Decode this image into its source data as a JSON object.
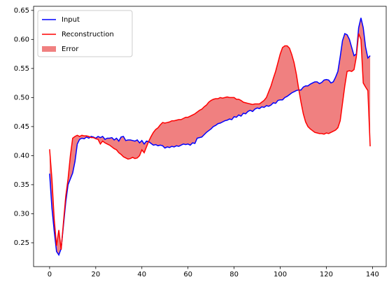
{
  "chart_data": {
    "type": "line",
    "x": [
      0,
      1,
      2,
      3,
      4,
      5,
      6,
      7,
      8,
      9,
      10,
      11,
      12,
      13,
      14,
      15,
      16,
      17,
      18,
      19,
      20,
      21,
      22,
      23,
      24,
      25,
      26,
      27,
      28,
      29,
      30,
      31,
      32,
      33,
      34,
      35,
      36,
      37,
      38,
      39,
      40,
      41,
      42,
      43,
      44,
      45,
      46,
      47,
      48,
      49,
      50,
      51,
      52,
      53,
      54,
      55,
      56,
      57,
      58,
      59,
      60,
      61,
      62,
      63,
      64,
      65,
      66,
      67,
      68,
      69,
      70,
      71,
      72,
      73,
      74,
      75,
      76,
      77,
      78,
      79,
      80,
      81,
      82,
      83,
      84,
      85,
      86,
      87,
      88,
      89,
      90,
      91,
      92,
      93,
      94,
      95,
      96,
      97,
      98,
      99,
      100,
      101,
      102,
      103,
      104,
      105,
      106,
      107,
      108,
      109,
      110,
      111,
      112,
      113,
      114,
      115,
      116,
      117,
      118,
      119,
      120,
      121,
      122,
      123,
      124,
      125,
      126,
      127,
      128,
      129,
      130,
      131,
      132,
      133,
      134,
      135,
      136,
      137,
      138,
      139
    ],
    "series": [
      {
        "name": "Input",
        "color": "#0000ff",
        "values": [
          0.369,
          0.31,
          0.27,
          0.235,
          0.229,
          0.24,
          0.28,
          0.32,
          0.35,
          0.36,
          0.37,
          0.39,
          0.42,
          0.428,
          0.43,
          0.429,
          0.432,
          0.43,
          0.433,
          0.432,
          0.43,
          0.433,
          0.431,
          0.433,
          0.428,
          0.43,
          0.43,
          0.431,
          0.427,
          0.43,
          0.425,
          0.432,
          0.433,
          0.426,
          0.427,
          0.427,
          0.426,
          0.425,
          0.427,
          0.422,
          0.426,
          0.42,
          0.425,
          0.424,
          0.421,
          0.418,
          0.419,
          0.417,
          0.418,
          0.417,
          0.413,
          0.415,
          0.414,
          0.416,
          0.415,
          0.417,
          0.416,
          0.418,
          0.42,
          0.419,
          0.42,
          0.418,
          0.422,
          0.421,
          0.43,
          0.431,
          0.432,
          0.436,
          0.44,
          0.443,
          0.446,
          0.45,
          0.452,
          0.455,
          0.456,
          0.458,
          0.46,
          0.461,
          0.463,
          0.462,
          0.467,
          0.466,
          0.47,
          0.468,
          0.473,
          0.472,
          0.476,
          0.478,
          0.476,
          0.48,
          0.482,
          0.481,
          0.484,
          0.483,
          0.486,
          0.485,
          0.487,
          0.491,
          0.49,
          0.495,
          0.496,
          0.496,
          0.5,
          0.502,
          0.505,
          0.508,
          0.51,
          0.512,
          0.513,
          0.513,
          0.518,
          0.52,
          0.52,
          0.523,
          0.525,
          0.527,
          0.527,
          0.524,
          0.526,
          0.53,
          0.531,
          0.53,
          0.525,
          0.527,
          0.535,
          0.545,
          0.57,
          0.598,
          0.61,
          0.608,
          0.6,
          0.586,
          0.572,
          0.575,
          0.62,
          0.637,
          0.62,
          0.587,
          0.568,
          0.572
        ]
      },
      {
        "name": "Reconstruction",
        "color": "#ff0000",
        "values": [
          0.411,
          0.36,
          0.29,
          0.245,
          0.272,
          0.238,
          0.285,
          0.33,
          0.36,
          0.4,
          0.43,
          0.433,
          0.435,
          0.433,
          0.435,
          0.434,
          0.434,
          0.433,
          0.431,
          0.431,
          0.429,
          0.428,
          0.42,
          0.425,
          0.422,
          0.42,
          0.418,
          0.415,
          0.412,
          0.41,
          0.405,
          0.402,
          0.398,
          0.396,
          0.394,
          0.395,
          0.397,
          0.395,
          0.396,
          0.4,
          0.41,
          0.405,
          0.415,
          0.425,
          0.433,
          0.44,
          0.445,
          0.448,
          0.453,
          0.457,
          0.456,
          0.457,
          0.458,
          0.46,
          0.46,
          0.461,
          0.462,
          0.462,
          0.464,
          0.466,
          0.466,
          0.468,
          0.47,
          0.472,
          0.475,
          0.478,
          0.48,
          0.484,
          0.487,
          0.492,
          0.495,
          0.497,
          0.498,
          0.498,
          0.5,
          0.499,
          0.5,
          0.501,
          0.5,
          0.5,
          0.5,
          0.497,
          0.497,
          0.495,
          0.492,
          0.491,
          0.49,
          0.489,
          0.488,
          0.489,
          0.489,
          0.489,
          0.492,
          0.495,
          0.5,
          0.51,
          0.52,
          0.533,
          0.545,
          0.56,
          0.575,
          0.586,
          0.589,
          0.589,
          0.585,
          0.574,
          0.56,
          0.54,
          0.515,
          0.492,
          0.472,
          0.458,
          0.45,
          0.446,
          0.443,
          0.44,
          0.439,
          0.438,
          0.438,
          0.437,
          0.439,
          0.438,
          0.44,
          0.442,
          0.444,
          0.448,
          0.46,
          0.49,
          0.52,
          0.545,
          0.546,
          0.545,
          0.548,
          0.57,
          0.61,
          0.6,
          0.525,
          0.518,
          0.512,
          0.416
        ]
      }
    ],
    "fill": {
      "name": "Error",
      "color": "#f08080"
    },
    "legend": "upper left",
    "xlim": [
      -6.95,
      145.95
    ],
    "xticks": [
      0,
      20,
      40,
      60,
      80,
      100,
      120,
      140
    ],
    "ylim": [
      0.209,
      0.657
    ],
    "yticks": [
      0.25,
      {
        "value": 0.3,
        "label": "0.30"
      },
      0.35,
      {
        "value": 0.4,
        "label": "0.40"
      },
      0.45,
      {
        "value": 0.5,
        "label": "0.50"
      },
      0.55,
      {
        "value": 0.6,
        "label": "0.60"
      },
      0.65
    ]
  }
}
